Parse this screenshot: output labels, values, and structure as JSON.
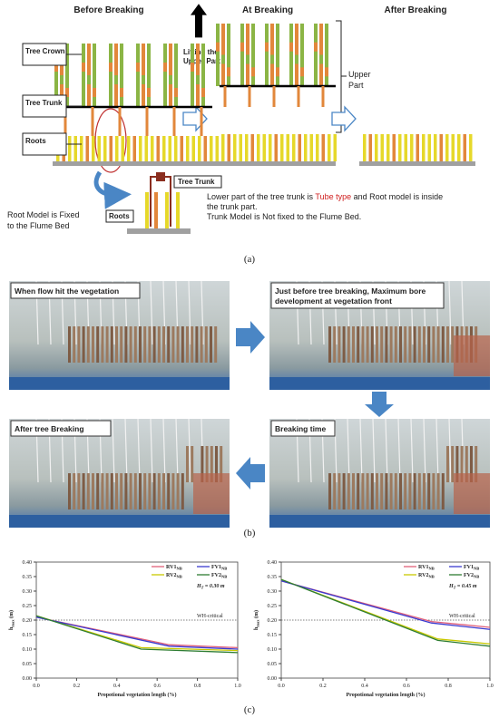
{
  "panel_a": {
    "headings": [
      "Before Breaking",
      "At Breaking",
      "After Breaking"
    ],
    "labels": {
      "crown": "Tree Crown",
      "trunk": "Tree Trunk",
      "roots": "Roots",
      "lifting": [
        "Lifting the",
        "Upper Part"
      ],
      "upper": [
        "Upper",
        "Part"
      ],
      "inset_trunk": "Tree Trunk",
      "inset_roots": "Roots"
    },
    "root_note": [
      "Root Model is Fixed",
      "to the Flume Bed"
    ],
    "note": {
      "line1": [
        "Lower part of the tree trunk is ",
        "Tube type",
        " and Root model is inside"
      ],
      "line2": "the trunk part.",
      "line3": "Trunk Model is Not fixed to the Flume Bed."
    },
    "caption": "(a)"
  },
  "panel_b": {
    "photos": [
      {
        "label": [
          "When flow hit the vegetation"
        ]
      },
      {
        "label": [
          "Just before tree breaking, Maximum bore",
          "development at vegetation front"
        ]
      },
      {
        "label": [
          "Breaking time"
        ]
      },
      {
        "label": [
          "After tree Breaking"
        ]
      }
    ],
    "caption": "(b)"
  },
  "chart_data": [
    {
      "type": "line",
      "ylabel": "h",
      "ylabel_subscript": "max",
      "ylabel_unit": " (m)",
      "xlabel": "Propotional vegetation length (%)",
      "annotation": [
        "H",
        "T",
        " = 0.30 m"
      ],
      "ref_line": {
        "value": 0.2,
        "label": "WH-critical"
      },
      "xlim": [
        0,
        1
      ],
      "ylim": [
        0,
        0.4
      ],
      "xticks": [
        {
          "value": 0,
          "label": "0.0"
        },
        {
          "value": 0.2,
          "label": "0.2"
        },
        {
          "value": 0.4,
          "label": "0.4"
        },
        {
          "value": 0.6,
          "label": "0.6"
        },
        {
          "value": 0.8,
          "label": "0.8"
        },
        {
          "value": 1,
          "label": "1.0"
        }
      ],
      "yticks": [
        {
          "value": 0,
          "label": "0.00"
        },
        {
          "value": 0.05,
          "label": "0.05"
        },
        {
          "value": 0.1,
          "label": "0.10"
        },
        {
          "value": 0.15,
          "label": "0.15"
        },
        {
          "value": 0.2,
          "label": "0.20"
        },
        {
          "value": 0.25,
          "label": "0.25"
        },
        {
          "value": 0.3,
          "label": "0.30"
        },
        {
          "value": 0.35,
          "label": "0.35"
        },
        {
          "value": 0.4,
          "label": "0.40"
        }
      ],
      "series": [
        {
          "name": "RV1",
          "name_subscript": "NB",
          "color": "#e0607a",
          "x": [
            0,
            0.66,
            1
          ],
          "values": [
            0.21,
            0.115,
            0.105
          ]
        },
        {
          "name": "RV2",
          "name_subscript": "NB",
          "color": "#c8c800",
          "x": [
            0,
            0.52,
            1
          ],
          "values": [
            0.215,
            0.105,
            0.095
          ]
        },
        {
          "name": "FV1",
          "name_subscript": "NB",
          "color": "#3a3ad0",
          "x": [
            0,
            0.66,
            1
          ],
          "values": [
            0.21,
            0.11,
            0.1
          ]
        },
        {
          "name": "FV2",
          "name_subscript": "NB",
          "color": "#2e7d32",
          "x": [
            0,
            0.52,
            1
          ],
          "values": [
            0.215,
            0.1,
            0.088
          ]
        }
      ]
    },
    {
      "type": "line",
      "ylabel": "h",
      "ylabel_subscript": "max",
      "ylabel_unit": " (m)",
      "xlabel": "Propotional vegetation length (%)",
      "annotation": [
        "H",
        "T",
        " = 0.45 m"
      ],
      "ref_line": {
        "value": 0.2,
        "label": "WH-critical"
      },
      "xlim": [
        0,
        1
      ],
      "ylim": [
        0,
        0.4
      ],
      "xticks": [
        {
          "value": 0,
          "label": "0.0"
        },
        {
          "value": 0.2,
          "label": "0.2"
        },
        {
          "value": 0.4,
          "label": "0.4"
        },
        {
          "value": 0.6,
          "label": "0.6"
        },
        {
          "value": 0.8,
          "label": "0.8"
        },
        {
          "value": 1,
          "label": "1.0"
        }
      ],
      "yticks": [
        {
          "value": 0,
          "label": "0.00"
        },
        {
          "value": 0.05,
          "label": "0.05"
        },
        {
          "value": 0.1,
          "label": "0.10"
        },
        {
          "value": 0.15,
          "label": "0.15"
        },
        {
          "value": 0.2,
          "label": "0.20"
        },
        {
          "value": 0.25,
          "label": "0.25"
        },
        {
          "value": 0.3,
          "label": "0.30"
        },
        {
          "value": 0.35,
          "label": "0.35"
        },
        {
          "value": 0.4,
          "label": "0.40"
        }
      ],
      "series": [
        {
          "name": "RV1",
          "name_subscript": "NB",
          "color": "#e0607a",
          "x": [
            0,
            0.72,
            1
          ],
          "values": [
            0.335,
            0.195,
            0.175
          ]
        },
        {
          "name": "RV2",
          "name_subscript": "NB",
          "color": "#c8c800",
          "x": [
            0,
            0.75,
            1
          ],
          "values": [
            0.34,
            0.135,
            0.118
          ]
        },
        {
          "name": "FV1",
          "name_subscript": "NB",
          "color": "#3a3ad0",
          "x": [
            0,
            0.72,
            1
          ],
          "values": [
            0.335,
            0.19,
            0.168
          ]
        },
        {
          "name": "FV2",
          "name_subscript": "NB",
          "color": "#2e7d32",
          "x": [
            0,
            0.75,
            1
          ],
          "values": [
            0.34,
            0.13,
            0.11
          ]
        }
      ]
    }
  ],
  "caption_c": "(c)"
}
